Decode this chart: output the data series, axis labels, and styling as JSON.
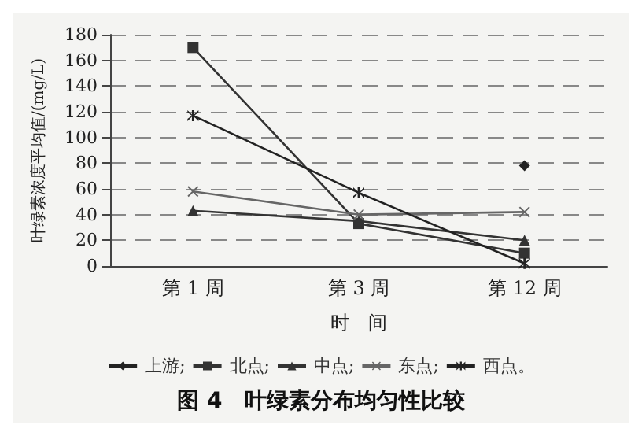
{
  "chart_data": {
    "type": "line",
    "title": "图 4　叶绿素分布均匀性比较",
    "xlabel": "时　间",
    "ylabel": "叶绿素浓度平均值/(mg/L)",
    "categories": [
      "第 1 周",
      "第 3 周",
      "第 12 周"
    ],
    "series": [
      {
        "name": "上游;",
        "color": "#222222",
        "marker": "diamond",
        "values": [
          null,
          null,
          78
        ]
      },
      {
        "name": "北点;",
        "color": "#333333",
        "marker": "square",
        "values": [
          170,
          33,
          10
        ]
      },
      {
        "name": "中点;",
        "color": "#333333",
        "marker": "triangle",
        "values": [
          43,
          35,
          20
        ]
      },
      {
        "name": "东点;",
        "color": "#666666",
        "marker": "cross",
        "values": [
          58,
          40,
          42
        ]
      },
      {
        "name": "西点。",
        "color": "#222222",
        "marker": "star",
        "values": [
          117,
          57,
          2
        ]
      }
    ],
    "ylim": [
      0,
      180
    ],
    "yticks": [
      0,
      20,
      40,
      60,
      80,
      100,
      120,
      140,
      160,
      180
    ],
    "grid": "y",
    "legend": "bottom",
    "line_style": "solid"
  }
}
